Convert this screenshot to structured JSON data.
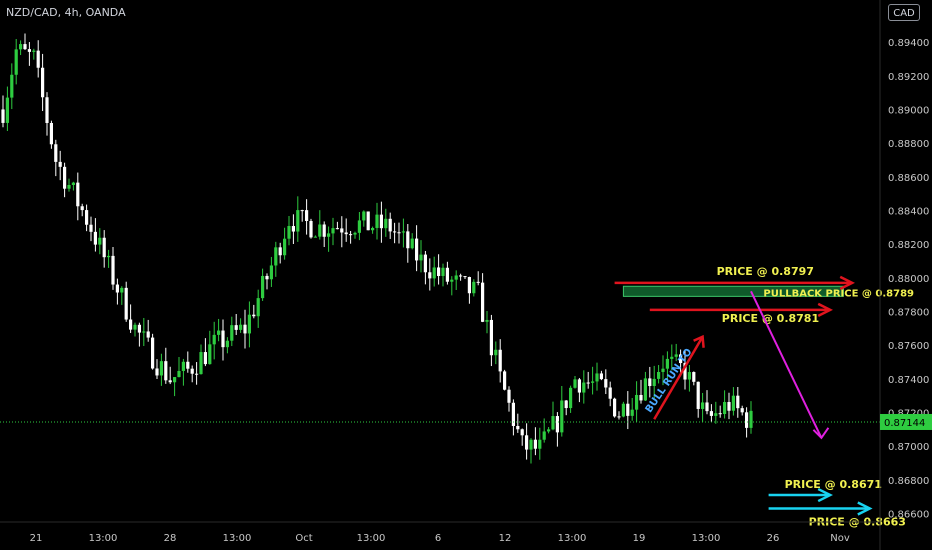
{
  "ticker": "NZD/CAD, 4h, OANDA",
  "currency": "CAD",
  "colors": {
    "background": "#000000",
    "up": "#2ecc40",
    "down": "#ffffff",
    "axis_text": "#c8c8c8",
    "last_price_bg": "#2ecc40",
    "red_arrow": "#e0141e",
    "cyan_arrow": "#19d3f0",
    "magenta_arrow": "#e020e0",
    "label_yellow": "#f0f050",
    "bull_text": "#4aa8ff",
    "pullback_fill": "#0f5a2a",
    "pullback_border": "#3cc86a"
  },
  "chart_data": {
    "type": "candlestick",
    "ylim": [
      0.8655,
      0.8965
    ],
    "y_ticks": [
      "0.86600",
      "0.86800",
      "0.87000",
      "0.87200",
      "0.87400",
      "0.87600",
      "0.87800",
      "0.88000",
      "0.88200",
      "0.88400",
      "0.88600",
      "0.88800",
      "0.89000",
      "0.89200",
      "0.89400"
    ],
    "x_ticks": [
      "21",
      "13:00",
      "28",
      "13:00",
      "Oct",
      "13:00",
      "6",
      "12",
      "13:00",
      "19",
      "13:00",
      "26",
      "Nov"
    ],
    "last_price": "0.87144",
    "price_path": [
      [
        0,
        0.89
      ],
      [
        3,
        0.8935
      ],
      [
        7,
        0.893
      ],
      [
        12,
        0.887
      ],
      [
        20,
        0.883
      ],
      [
        25,
        0.88
      ],
      [
        30,
        0.877
      ],
      [
        35,
        0.875
      ],
      [
        38,
        0.874
      ],
      [
        42,
        0.8745
      ],
      [
        48,
        0.876
      ],
      [
        55,
        0.877
      ],
      [
        60,
        0.88
      ],
      [
        65,
        0.8835
      ],
      [
        72,
        0.883
      ],
      [
        80,
        0.8832
      ],
      [
        88,
        0.883
      ],
      [
        95,
        0.881
      ],
      [
        100,
        0.88
      ],
      [
        108,
        0.879
      ],
      [
        113,
        0.874
      ],
      [
        118,
        0.87
      ],
      [
        122,
        0.8698
      ],
      [
        126,
        0.8715
      ],
      [
        130,
        0.874
      ],
      [
        136,
        0.8735
      ],
      [
        140,
        0.872
      ],
      [
        145,
        0.8735
      ],
      [
        150,
        0.875
      ],
      [
        155,
        0.8745
      ],
      [
        160,
        0.8715
      ],
      [
        165,
        0.8725
      ],
      [
        170,
        0.8715
      ]
    ],
    "annotations": [
      {
        "id": "price-8797",
        "text": "PRICE @ 0.8797",
        "price": 0.8797,
        "color": "red",
        "x_start": 139,
        "x_end": 193
      },
      {
        "id": "pullback-8789",
        "text": "PULLBACK PRICE @ 0.8789",
        "price_top": 0.8795,
        "price_bottom": 0.8789,
        "x_start": 141,
        "x_end": 191
      },
      {
        "id": "price-8781",
        "text": "PRICE @ 0.8781",
        "price": 0.8781,
        "color": "red",
        "x_start": 147,
        "x_end": 188
      },
      {
        "id": "price-8671",
        "text": "PRICE @ 0.8671",
        "price": 0.8671,
        "color": "cyan",
        "x_start": 174,
        "x_end": 188
      },
      {
        "id": "price-8663",
        "text": "PRICE @ 0.8663",
        "price": 0.8663,
        "color": "cyan",
        "x_start": 174,
        "x_end": 197
      },
      {
        "id": "bull-run",
        "text": "BULL RUN TO",
        "from": [
          148,
          0.8716
        ],
        "to": [
          159,
          0.8765
        ],
        "color": "red"
      },
      {
        "id": "drop",
        "from": [
          170,
          0.8792
        ],
        "to": [
          186,
          0.8705
        ],
        "color": "magenta"
      }
    ]
  }
}
